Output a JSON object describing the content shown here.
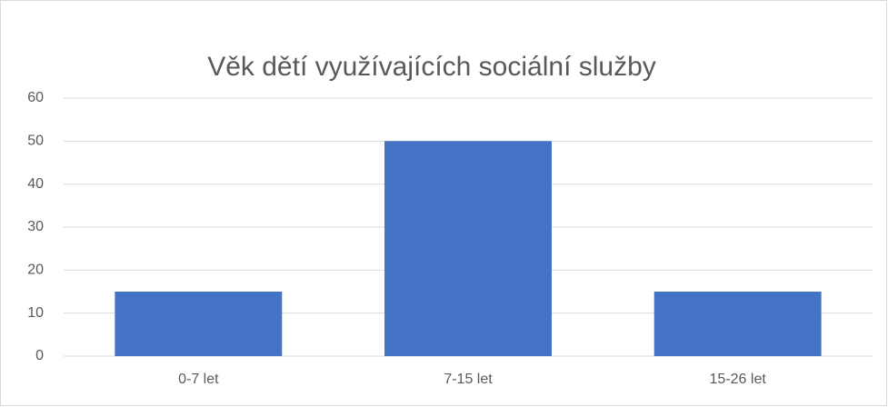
{
  "chart_data": {
    "type": "bar",
    "title": "Věk dětí využívajících sociální služby",
    "categories": [
      "0-7 let",
      "7-15 let",
      "15-26 let"
    ],
    "values": [
      15,
      50,
      15
    ],
    "color": "#4472c4",
    "ylim": [
      0,
      60
    ],
    "yticks": [
      0,
      10,
      20,
      30,
      40,
      50,
      60
    ],
    "grid": true
  }
}
